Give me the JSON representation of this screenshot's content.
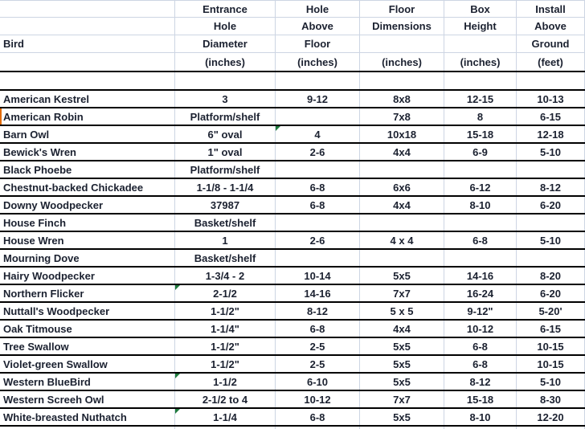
{
  "app": {
    "type": "spreadsheet",
    "description": "Birdhouse specifications table"
  },
  "colors": {
    "text": "#1b2130",
    "gridline": "#cdd5e3",
    "row_border": "#000000",
    "error_triangle": "#1e7a3c",
    "row_marker": "#e36c09",
    "background": "#ffffff"
  },
  "table": {
    "columns": [
      {
        "id": "bird",
        "header_lines": [
          "",
          "",
          "Bird",
          ""
        ]
      },
      {
        "id": "entrance",
        "header_lines": [
          "Entrance",
          "Hole",
          "Diameter",
          "(inches)"
        ]
      },
      {
        "id": "hole-above-floor",
        "header_lines": [
          "Hole",
          "Above",
          "Floor",
          "(inches)"
        ]
      },
      {
        "id": "floor-dimensions",
        "header_lines": [
          "Floor",
          "Dimensions",
          "",
          "(inches)"
        ]
      },
      {
        "id": "box-height",
        "header_lines": [
          "Box",
          "Height",
          "",
          "(inches)"
        ]
      },
      {
        "id": "install",
        "header_lines": [
          "Install",
          "Above",
          "Ground",
          "(feet)"
        ]
      }
    ],
    "rows": [
      [
        "American Kestrel",
        "3",
        "9-12",
        "8x8",
        "12-15",
        "10-13"
      ],
      [
        "American Robin",
        "Platform/shelf",
        "",
        "7x8",
        "8",
        "6-15"
      ],
      [
        "Barn Owl",
        "6\" oval",
        "4",
        "10x18",
        "15-18",
        "12-18"
      ],
      [
        "Bewick's Wren",
        "1\" oval",
        "2-6",
        "4x4",
        "6-9",
        "5-10"
      ],
      [
        "Black Phoebe",
        "Platform/shelf",
        "",
        "",
        "",
        ""
      ],
      [
        "Chestnut-backed Chickadee",
        "1-1/8 - 1-1/4",
        "6-8",
        "6x6",
        "6-12",
        "8-12"
      ],
      [
        "Downy Woodpecker",
        "37987",
        "6-8",
        "4x4",
        "8-10",
        "6-20"
      ],
      [
        "House Finch",
        "Basket/shelf",
        "",
        "",
        "",
        ""
      ],
      [
        "House Wren",
        "1",
        "2-6",
        "4 x 4",
        "6-8",
        "5-10"
      ],
      [
        "Mourning Dove",
        "Basket/shelf",
        "",
        "",
        "",
        ""
      ],
      [
        "Hairy Woodpecker",
        "1-3/4 - 2",
        "10-14",
        "5x5",
        "14-16",
        "8-20"
      ],
      [
        "Northern Flicker",
        "2-1/2",
        "14-16",
        "7x7",
        "16-24",
        "6-20"
      ],
      [
        "Nuttall's Woodpecker",
        "1-1/2\"",
        "8-12",
        "5 x 5",
        "9-12\"",
        "5-20'"
      ],
      [
        "Oak Titmouse",
        "1-1/4\"",
        "6-8",
        "4x4",
        "10-12",
        "6-15"
      ],
      [
        "Tree Swallow",
        "1-1/2\"",
        "2-5",
        "5x5",
        "6-8",
        "10-15"
      ],
      [
        "Violet-green Swallow",
        "1-1/2\"",
        "2-5",
        "5x5",
        "6-8",
        "10-15"
      ],
      [
        "Western BlueBird",
        "1-1/2",
        "6-10",
        "5x5",
        "8-12",
        "5-10"
      ],
      [
        "Western Screeh Owl",
        "2-1/2 to 4",
        "10-12",
        "7x7",
        "15-18",
        "8-30"
      ],
      [
        "White-breasted Nuthatch",
        "1-1/4",
        "6-8",
        "5x5",
        "8-10",
        "12-20"
      ]
    ]
  },
  "annotations": {
    "error_triangles": [
      {
        "row": 2,
        "col": 2,
        "row_label": "Barn Owl",
        "column_id": "hole-above-floor"
      },
      {
        "row": 11,
        "col": 1,
        "row_label": "Northern Flicker",
        "column_id": "entrance"
      },
      {
        "row": 16,
        "col": 1,
        "row_label": "Western BlueBird",
        "column_id": "entrance"
      },
      {
        "row": 18,
        "col": 1,
        "row_label": "White-breasted Nuthatch",
        "column_id": "entrance"
      }
    ],
    "orange_row_marker": {
      "row": 1,
      "row_label": "American Robin"
    }
  }
}
